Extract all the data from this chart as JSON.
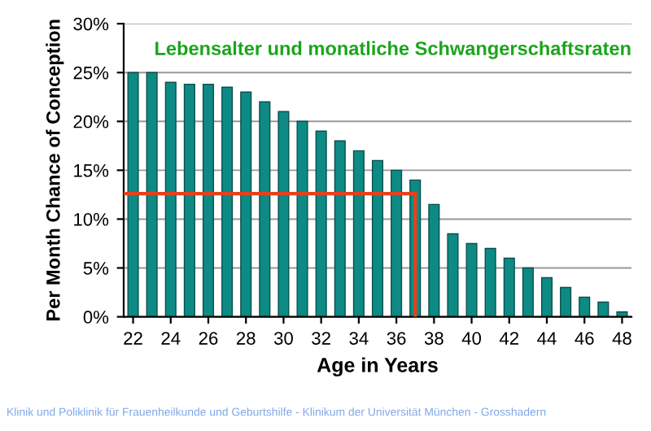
{
  "chart_data": {
    "type": "bar",
    "title": "Lebensalter und monatliche Schwangerschaftsraten",
    "xlabel": "Age in Years",
    "ylabel": "Per Month Chance of Conception",
    "x": [
      22,
      23,
      24,
      25,
      26,
      27,
      28,
      29,
      30,
      31,
      32,
      33,
      34,
      35,
      36,
      37,
      38,
      39,
      40,
      41,
      42,
      43,
      44,
      45,
      46,
      47,
      48
    ],
    "values": [
      25,
      25,
      24,
      23.8,
      23.8,
      23.5,
      23,
      22,
      21,
      20,
      19,
      18,
      17,
      16,
      15,
      14,
      11.5,
      8.5,
      7.5,
      7,
      6,
      5,
      4,
      3,
      2,
      1.5,
      0.5
    ],
    "color": "#0e8a84",
    "xlim": [
      21.5,
      48.5
    ],
    "xticks": [
      22,
      24,
      26,
      28,
      30,
      32,
      34,
      36,
      38,
      40,
      42,
      44,
      46,
      48
    ],
    "ylim": [
      0,
      30
    ],
    "yticks": [
      {
        "value": 0,
        "label": "0%"
      },
      {
        "value": 5,
        "label": "5%"
      },
      {
        "value": 10,
        "label": "10%"
      },
      {
        "value": 15,
        "label": "15%"
      },
      {
        "value": 20,
        "label": "20%"
      },
      {
        "value": 25,
        "label": "25%"
      },
      {
        "value": 30,
        "label": "30%"
      }
    ],
    "grid": "y",
    "ref_lines": [
      {
        "axis": "y",
        "value": 12.6,
        "color": "#e8401c"
      },
      {
        "axis": "x",
        "value": 37,
        "color": "#e8401c"
      }
    ],
    "annotations": [
      "Klinik und Poliklinik für Frauenheilkunde und Geburtshilfe - Klinikum der Universität München - Grosshadern"
    ]
  }
}
